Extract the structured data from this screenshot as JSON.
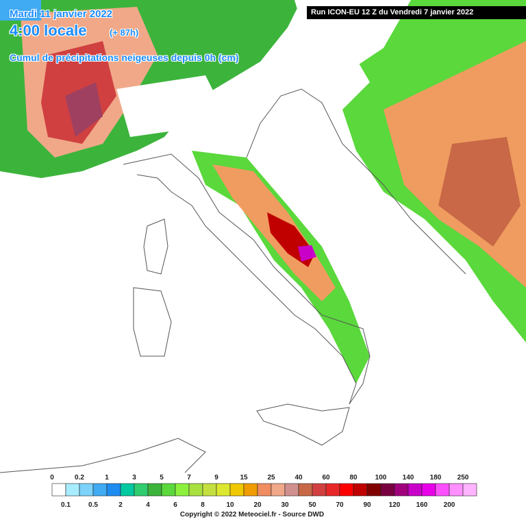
{
  "header": {
    "date": "Mardi 11 janvier 2022",
    "time": "4:00 locale",
    "lead": "(+ 87h)",
    "subtitle": "Cumul de précipitations neigeuses depuis 0h (cm)"
  },
  "run": "Run ICON-EU 12 Z du Vendredi 7 janvier 2022",
  "legend": {
    "top_labels": [
      "0",
      "0.2",
      "1",
      "3",
      "5",
      "7",
      "9",
      "15",
      "25",
      "40",
      "60",
      "80",
      "100",
      "140",
      "180",
      "250"
    ],
    "bottom_labels": [
      "0.1",
      "0.5",
      "2",
      "4",
      "6",
      "8",
      "10",
      "20",
      "30",
      "50",
      "70",
      "90",
      "120",
      "160",
      "200"
    ],
    "colors": [
      "#ffffff",
      "#a8ecff",
      "#7cd2fa",
      "#40aaf2",
      "#1e8cf0",
      "#00c8a0",
      "#30cc70",
      "#3cb43c",
      "#5ad83c",
      "#8cf03c",
      "#a8e040",
      "#c4e040",
      "#dce830",
      "#f0c800",
      "#f09c00",
      "#f08c60",
      "#f0a888",
      "#d09090",
      "#c86846",
      "#d04040",
      "#e82828",
      "#ff0000",
      "#c00000",
      "#800000",
      "#780040",
      "#a0007c",
      "#c800c8",
      "#e800e8",
      "#ff50ff",
      "#ff90ff",
      "#ffb4ff",
      "#c8c8c8",
      "#a0a0a0",
      "#707070",
      "#383838"
    ]
  },
  "copyright": "Copyright © 2022 Meteociel.fr - Source DWD"
}
